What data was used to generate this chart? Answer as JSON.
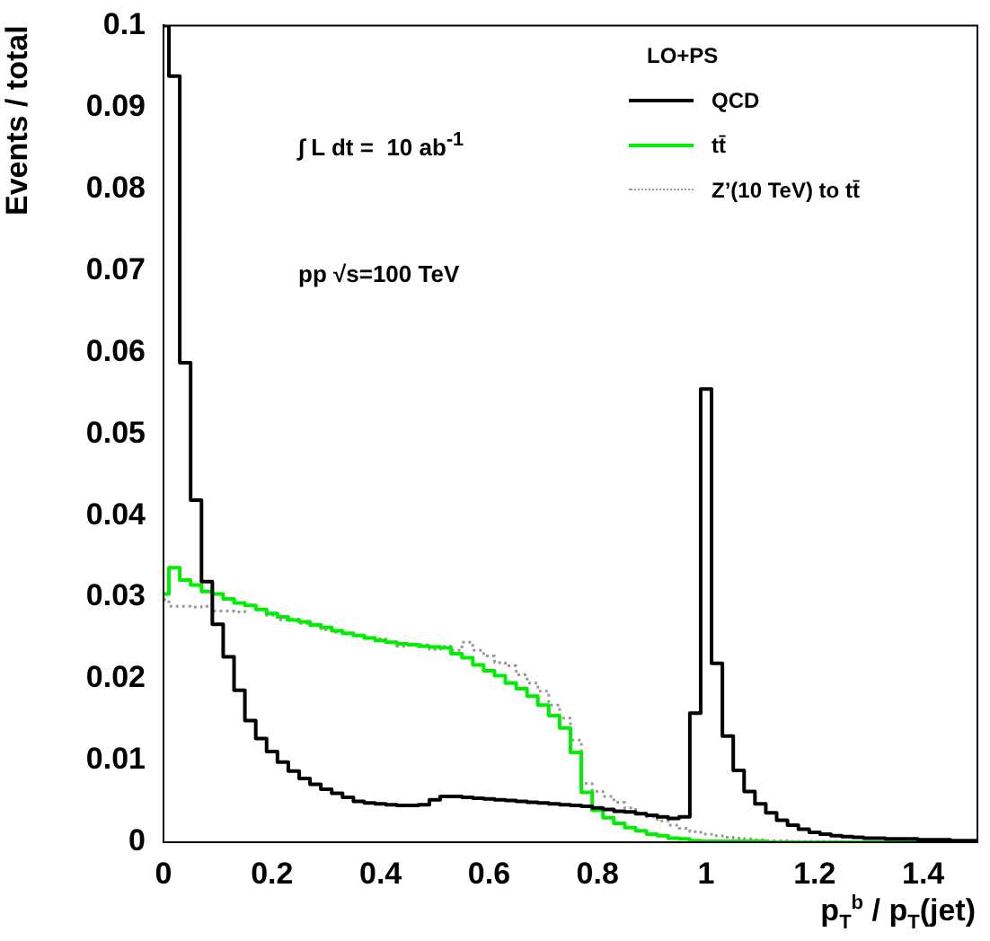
{
  "chart_data": {
    "type": "histogram",
    "ylabel": "Events / total",
    "xlabel": "p$_{T}$$^{b}$ / p$_{T}$(jet)",
    "legend_title": "LO+PS",
    "legend": "top right",
    "annotations": [
      "∫ L dt =  10 ab$^{-1}$",
      "pp √s=100 TeV"
    ],
    "xlim": [
      0,
      1.5
    ],
    "xticks": [
      0,
      0.2,
      0.4,
      0.6,
      0.8,
      1,
      1.2,
      1.4
    ],
    "ylim": [
      0,
      0.1
    ],
    "yticks": [
      0,
      0.01,
      0.02,
      0.03,
      0.04,
      0.05,
      0.06,
      0.07,
      0.08,
      0.09,
      0.1
    ],
    "bins": [
      0,
      0.01,
      0.03,
      0.05,
      0.07,
      0.09,
      0.11,
      0.13,
      0.15,
      0.17,
      0.19,
      0.21,
      0.23,
      0.25,
      0.27,
      0.29,
      0.31,
      0.33,
      0.35,
      0.37,
      0.39,
      0.41,
      0.43,
      0.45,
      0.47,
      0.49,
      0.51,
      0.53,
      0.55,
      0.57,
      0.59,
      0.61,
      0.63,
      0.65,
      0.67,
      0.69,
      0.71,
      0.73,
      0.75,
      0.77,
      0.79,
      0.81,
      0.83,
      0.85,
      0.87,
      0.89,
      0.91,
      0.93,
      0.95,
      0.97,
      0.99,
      1.01,
      1.03,
      1.05,
      1.07,
      1.09,
      1.11,
      1.13,
      1.15,
      1.17,
      1.19,
      1.21,
      1.23,
      1.25,
      1.27,
      1.29,
      1.31,
      1.33,
      1.35,
      1.37,
      1.39,
      1.41,
      1.43,
      1.45,
      1.47,
      1.49,
      1.5
    ],
    "series": [
      {
        "name": "QCD",
        "color": "#000000",
        "values": [
          0.1,
          0.0938,
          0.0587,
          0.0419,
          0.0319,
          0.0267,
          0.0227,
          0.0186,
          0.0149,
          0.0127,
          0.0111,
          0.0098,
          0.0087,
          0.0078,
          0.0071,
          0.0065,
          0.006,
          0.0055,
          0.005,
          0.0048,
          0.0047,
          0.0046,
          0.0045,
          0.0045,
          0.0046,
          0.0052,
          0.0056,
          0.0056,
          0.0055,
          0.0054,
          0.0053,
          0.0052,
          0.0051,
          0.005,
          0.0049,
          0.0048,
          0.0047,
          0.0046,
          0.0045,
          0.0044,
          0.0042,
          0.004,
          0.0038,
          0.0037,
          0.0035,
          0.0033,
          0.0031,
          0.0029,
          0.0031,
          0.0158,
          0.0555,
          0.0219,
          0.013,
          0.0088,
          0.0062,
          0.0047,
          0.0036,
          0.0027,
          0.0021,
          0.0016,
          0.0012,
          0.001,
          0.0008,
          0.0007,
          0.0006,
          0.0005,
          0.0005,
          0.0004,
          0.0004,
          0.0004,
          0.0003,
          0.0003,
          0.0003,
          0.0002,
          0.0002,
          0.0002
        ]
      },
      {
        "name": "tt̄",
        "color": "#00ee00",
        "values": [
          0.0304,
          0.0336,
          0.0321,
          0.0315,
          0.0307,
          0.0304,
          0.0298,
          0.0293,
          0.029,
          0.0285,
          0.028,
          0.0276,
          0.0272,
          0.027,
          0.0266,
          0.0263,
          0.0259,
          0.0256,
          0.0253,
          0.025,
          0.0247,
          0.0245,
          0.0243,
          0.0242,
          0.024,
          0.0239,
          0.0238,
          0.0231,
          0.0226,
          0.0217,
          0.021,
          0.0204,
          0.0195,
          0.0188,
          0.0179,
          0.0168,
          0.0155,
          0.014,
          0.011,
          0.0061,
          0.0039,
          0.003,
          0.0023,
          0.0018,
          0.0014,
          0.001,
          0.0008,
          0.0005,
          0.0004,
          0.0002,
          0.0001,
          0.0001,
          0.0001,
          0.0001,
          0.0001,
          0.0001,
          0,
          0,
          0,
          0,
          0,
          0,
          0,
          0,
          0,
          0,
          0,
          0,
          0,
          0,
          0,
          0,
          0,
          0,
          0,
          0
        ]
      },
      {
        "name": "Z’(10 TeV) to tt̄",
        "color": "#999999",
        "line_style": "dotted",
        "values": [
          0.0297,
          0.0289,
          0.0289,
          0.0288,
          0.0289,
          0.0283,
          0.0283,
          0.0282,
          0.029,
          0.0285,
          0.0278,
          0.0272,
          0.0273,
          0.0268,
          0.0265,
          0.026,
          0.0257,
          0.0255,
          0.0252,
          0.025,
          0.0249,
          0.0245,
          0.024,
          0.0241,
          0.0242,
          0.0236,
          0.024,
          0.0235,
          0.0245,
          0.0235,
          0.0228,
          0.022,
          0.0216,
          0.0205,
          0.0195,
          0.0185,
          0.0168,
          0.0152,
          0.0125,
          0.0072,
          0.0062,
          0.0056,
          0.0049,
          0.0042,
          0.0036,
          0.0031,
          0.0026,
          0.0021,
          0.0017,
          0.0013,
          0.001,
          0.0008,
          0.0006,
          0.0005,
          0.0004,
          0.0003,
          0.0002,
          0.0002,
          0.0001,
          0.0001,
          0.0001,
          0.0001,
          0.0001,
          0,
          0,
          0,
          0,
          0,
          0,
          0,
          0,
          0,
          0,
          0,
          0,
          0
        ]
      }
    ]
  }
}
